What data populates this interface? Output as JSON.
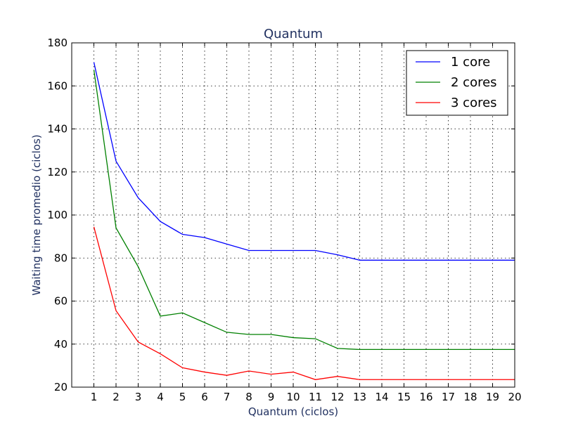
{
  "chart_data": {
    "type": "line",
    "title": "Quantum",
    "xlabel": "Quantum (ciclos)",
    "ylabel": "Waiting time promedio (ciclos)",
    "xlim": [
      0,
      20
    ],
    "ylim": [
      20,
      180
    ],
    "x_ticks": [
      "1",
      "2",
      "3",
      "4",
      "5",
      "6",
      "7",
      "8",
      "9",
      "10",
      "11",
      "12",
      "13",
      "14",
      "15",
      "16",
      "17",
      "18",
      "19",
      "20"
    ],
    "y_ticks": [
      "20",
      "40",
      "60",
      "80",
      "100",
      "120",
      "140",
      "160",
      "180"
    ],
    "grid": true,
    "legend_position": "top-right",
    "x": [
      1,
      2,
      3,
      4,
      5,
      6,
      7,
      8,
      9,
      10,
      11,
      12,
      13,
      14,
      15,
      16,
      17,
      18,
      19,
      20
    ],
    "series": [
      {
        "name": "1 core",
        "color": "#0000ff",
        "values": [
          171,
          125,
          108,
          97,
          91,
          89.5,
          86.5,
          83.5,
          83.5,
          83.5,
          83.5,
          81.5,
          79,
          79,
          79,
          79,
          79,
          79,
          79,
          79
        ]
      },
      {
        "name": "2 cores",
        "color": "#008000",
        "values": [
          167.5,
          94,
          76,
          53,
          54.5,
          50,
          45.5,
          44.5,
          44.5,
          43,
          42.5,
          38,
          37.5,
          37.5,
          37.5,
          37.5,
          37.5,
          37.5,
          37.5,
          37.5
        ]
      },
      {
        "name": "3 cores",
        "color": "#ff0000",
        "values": [
          94.5,
          55.5,
          41,
          35.5,
          29,
          27,
          25.5,
          27.5,
          26,
          27,
          23.5,
          25,
          23.5,
          23.5,
          23.5,
          23.5,
          23.5,
          23.5,
          23.5,
          23.5
        ]
      }
    ]
  }
}
